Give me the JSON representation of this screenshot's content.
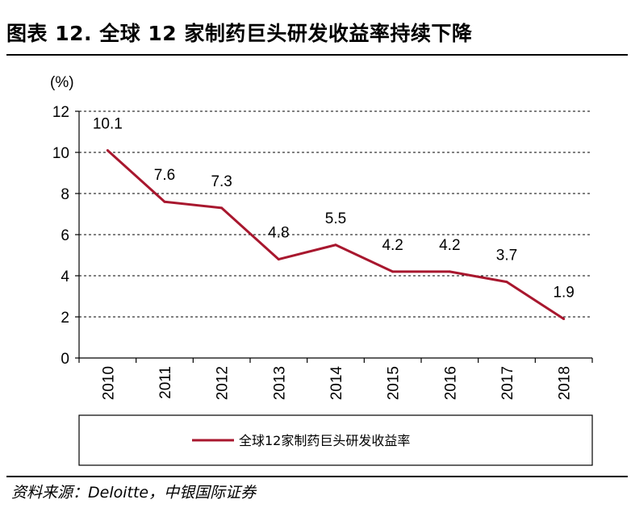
{
  "header": {
    "title": "图表 12. 全球 12 家制药巨头研发收益率持续下降"
  },
  "footer": {
    "source": "资料来源：Deloitte，中银国际证券"
  },
  "colors": {
    "line": "#a8172e",
    "grid": "#000000",
    "axis": "#000000"
  },
  "chart_data": {
    "type": "line",
    "title": "",
    "xlabel": "",
    "ylabel": "(%)",
    "ylim": [
      0,
      12
    ],
    "yticks": [
      "0",
      "2",
      "4",
      "6",
      "8",
      "10",
      "12"
    ],
    "grid": "horizontal-dashed",
    "legend_placement": "bottom",
    "categories": [
      "2010",
      "2011",
      "2012",
      "2013",
      "2014",
      "2015",
      "2016",
      "2017",
      "2018"
    ],
    "series": [
      {
        "name": "全球12家制药巨头研发收益率",
        "values": [
          10.1,
          7.6,
          7.3,
          4.8,
          5.5,
          4.2,
          4.2,
          3.7,
          1.9
        ],
        "labels": [
          "10.1",
          "7.6",
          "7.3",
          "4.8",
          "5.5",
          "4.2",
          "4.2",
          "3.7",
          "1.9"
        ]
      }
    ]
  }
}
